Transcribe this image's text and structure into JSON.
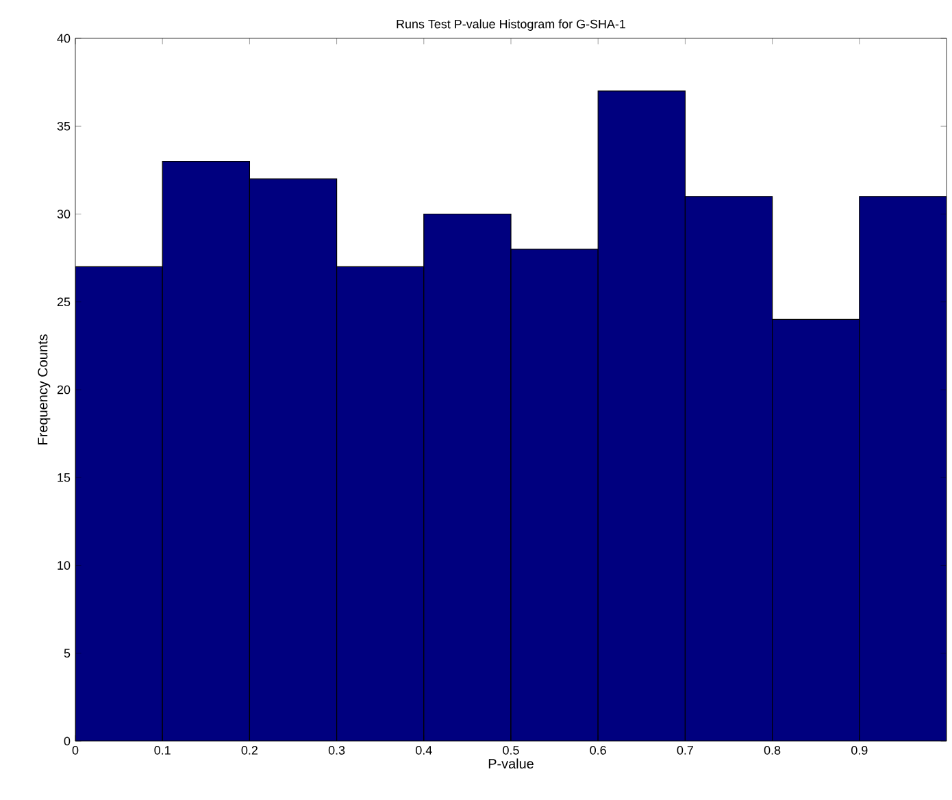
{
  "chart_data": {
    "type": "histogram",
    "title": "Runs Test P-value Histogram for G-SHA-1",
    "xlabel": "P-value",
    "ylabel": "Frequency Counts",
    "bins": [
      0,
      0.1,
      0.2,
      0.3,
      0.4,
      0.5,
      0.6,
      0.7,
      0.8,
      0.9,
      1.0
    ],
    "values": [
      27,
      33,
      32,
      27,
      30,
      28,
      37,
      31,
      24,
      31
    ],
    "color": "#00007f",
    "xlim": [
      0,
      1
    ],
    "xticks": [
      0,
      0.1,
      0.2,
      0.3,
      0.4,
      0.5,
      0.6,
      0.7,
      0.8,
      0.9
    ],
    "ylim": [
      0,
      40
    ],
    "yticks": [
      0,
      5,
      10,
      15,
      20,
      25,
      30,
      35,
      40
    ],
    "grid": false
  }
}
